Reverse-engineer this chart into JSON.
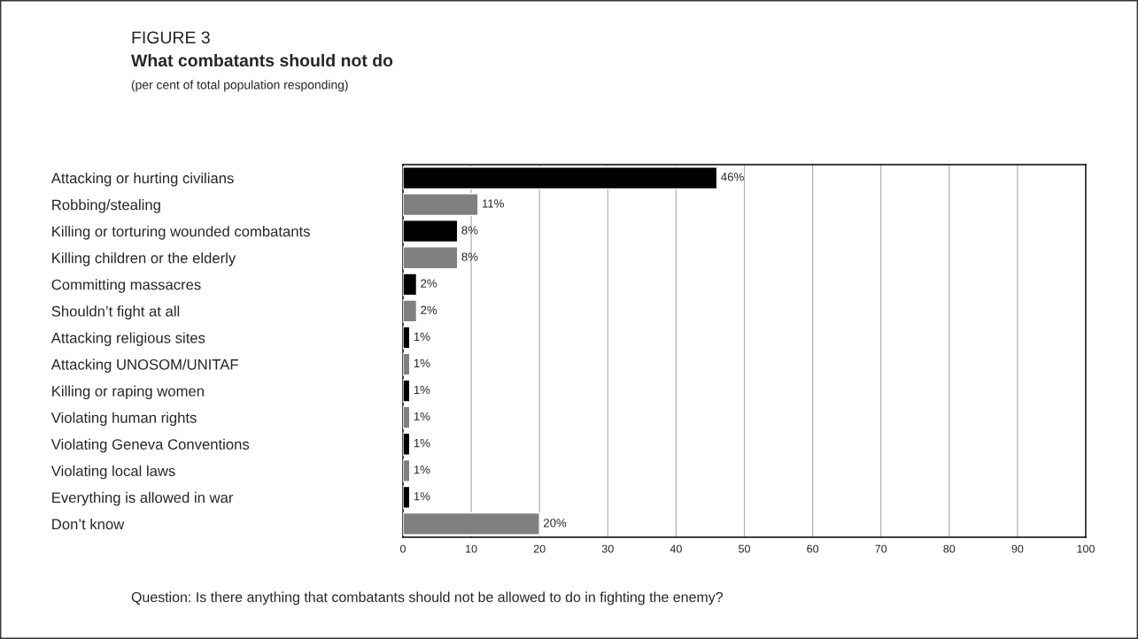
{
  "chart_data": {
    "type": "bar",
    "orientation": "horizontal",
    "title": "What combatants should not do",
    "subtitle": "(per cent of total population responding)",
    "annotations": [
      "FIGURE 3",
      "Question: Is there anything that combatants should not be allowed to do in fighting the enemy?"
    ],
    "categories": [
      "Attacking or hurting civilians",
      "Robbing/stealing",
      "Killing or torturing wounded combatants",
      "Killing children or the elderly",
      "Committing massacres",
      "Shouldn’t fight at all",
      "Attacking religious sites",
      "Attacking UNOSOM/UNITAF",
      "Killing or raping women",
      "Violating human rights",
      "Violating Geneva Conventions",
      "Violating local laws",
      "Everything is allowed in war",
      "Don’t know"
    ],
    "values": [
      46,
      11,
      8,
      8,
      2,
      2,
      1,
      1,
      1,
      1,
      1,
      1,
      1,
      20
    ],
    "value_labels": [
      "46%",
      "11%",
      "8%",
      "8%",
      "2%",
      "2%",
      "1%",
      "1%",
      "1%",
      "1%",
      "1%",
      "1%",
      "1%",
      "20%"
    ],
    "colors": [
      "#000000",
      "#808080",
      "#000000",
      "#808080",
      "#000000",
      "#808080",
      "#000000",
      "#808080",
      "#000000",
      "#808080",
      "#000000",
      "#808080",
      "#000000",
      "#808080"
    ],
    "xlim": [
      0,
      100
    ],
    "xticks": [
      0,
      10,
      20,
      30,
      40,
      50,
      60,
      70,
      80,
      90,
      100
    ],
    "grid": "x",
    "legend": false
  }
}
